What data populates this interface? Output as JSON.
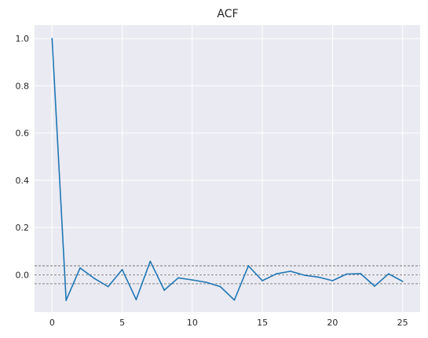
{
  "chart_data": {
    "type": "line",
    "title": "ACF",
    "xlabel": "",
    "ylabel": "",
    "xlim": [
      -1.25,
      26.25
    ],
    "ylim": [
      -0.158,
      1.057
    ],
    "grid": true,
    "colors": {
      "background": "#eaeaf2",
      "grid": "#ffffff",
      "line": "#1f77b4",
      "reference": "#666666"
    },
    "x_ticks": [
      {
        "value": 0,
        "label": "0"
      },
      {
        "value": 5,
        "label": "5"
      },
      {
        "value": 10,
        "label": "10"
      },
      {
        "value": 15,
        "label": "15"
      },
      {
        "value": 20,
        "label": "20"
      },
      {
        "value": 25,
        "label": "25"
      }
    ],
    "y_ticks": [
      {
        "value": 0.0,
        "label": "0.0"
      },
      {
        "value": 0.2,
        "label": "0.2"
      },
      {
        "value": 0.4,
        "label": "0.4"
      },
      {
        "value": 0.6,
        "label": "0.6"
      },
      {
        "value": 0.8,
        "label": "0.8"
      },
      {
        "value": 1.0,
        "label": "1.0"
      }
    ],
    "reference_lines": [
      0.038,
      0.0,
      -0.038
    ],
    "series": [
      {
        "x": [
          0,
          1,
          2,
          3,
          4,
          5,
          6,
          7,
          8,
          9,
          10,
          11,
          12,
          13,
          14,
          15,
          16,
          17,
          18,
          19,
          20,
          21,
          22,
          23,
          24,
          25
        ],
        "values": [
          1.0,
          -0.108,
          0.029,
          -0.015,
          -0.05,
          0.022,
          -0.105,
          0.057,
          -0.065,
          -0.013,
          -0.022,
          -0.032,
          -0.05,
          -0.107,
          0.038,
          -0.025,
          0.004,
          0.015,
          -0.002,
          -0.01,
          -0.025,
          0.003,
          0.005,
          -0.048,
          0.004,
          -0.028
        ]
      }
    ]
  }
}
